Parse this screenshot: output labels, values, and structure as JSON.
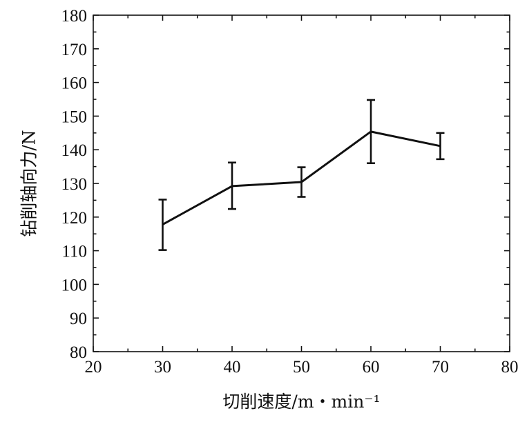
{
  "chart_data": {
    "type": "line",
    "xlabel": "切削速度/m・min⁻¹",
    "ylabel": "钻削轴向力/N",
    "xlim": [
      20,
      80
    ],
    "ylim": [
      80,
      180
    ],
    "xticks": [
      20,
      30,
      40,
      50,
      60,
      70,
      80
    ],
    "yticks": [
      80,
      90,
      100,
      110,
      120,
      130,
      140,
      150,
      160,
      170,
      180
    ],
    "x_tick_labels": [
      "20",
      "30",
      "40",
      "50",
      "60",
      "70",
      "80"
    ],
    "y_tick_labels": [
      "80",
      "90",
      "100",
      "110",
      "120",
      "130",
      "140",
      "150",
      "160",
      "170",
      "180"
    ],
    "grid": false,
    "legend": "none",
    "series": [
      {
        "x": [
          30,
          40,
          50,
          60,
          70
        ],
        "y": [
          117.8,
          129.2,
          130.4,
          145.4,
          141.1
        ],
        "error_low": [
          110.2,
          122.4,
          126.0,
          136.0,
          137.2
        ],
        "error_high": [
          125.2,
          136.2,
          134.8,
          154.8,
          145.0
        ],
        "color": "#111111"
      }
    ]
  }
}
